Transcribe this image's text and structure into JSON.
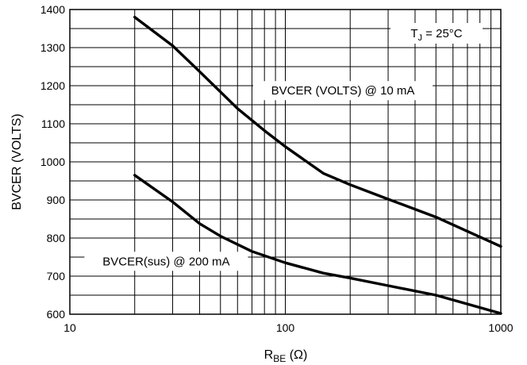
{
  "chart_data": {
    "type": "line",
    "x_scale": "log",
    "y_scale": "linear",
    "xlim": [
      10,
      1000
    ],
    "ylim": [
      600,
      1400
    ],
    "grid": true,
    "x_ticks": [
      "10",
      "100",
      "1000"
    ],
    "y_ticks": [
      "600",
      "700",
      "800",
      "900",
      "1000",
      "1100",
      "1200",
      "1300",
      "1400"
    ],
    "ylabel": "BVCER (VOLTS)",
    "xlabel": {
      "main": "R",
      "sub": "BE",
      "unit": " (Ω)"
    },
    "annotation": {
      "main": "T",
      "sub": "J",
      "rest": " = 25°C"
    },
    "series": [
      {
        "name": "BVCER (VOLTS) @ 10 mA",
        "x": [
          20,
          30,
          40,
          60,
          80,
          100,
          150,
          200,
          300,
          500,
          1000
        ],
        "y": [
          1380,
          1305,
          1237,
          1140,
          1082,
          1040,
          970,
          940,
          902,
          855,
          778
        ]
      },
      {
        "name": "BVCER(sus) @ 200 mA",
        "x": [
          20,
          30,
          40,
          50,
          70,
          100,
          150,
          200,
          300,
          500,
          1000
        ],
        "y": [
          965,
          895,
          838,
          805,
          765,
          735,
          708,
          695,
          675,
          650,
          602
        ]
      }
    ]
  }
}
